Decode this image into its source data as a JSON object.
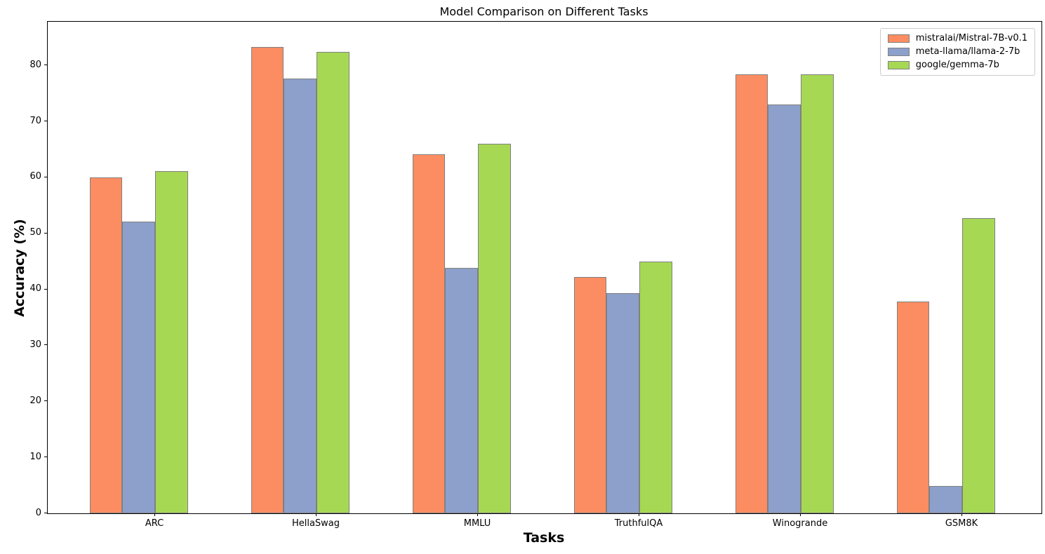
{
  "chart_data": {
    "type": "bar",
    "title": "Model Comparison on Different Tasks",
    "xlabel": "Tasks",
    "ylabel": "Accuracy (%)",
    "categories": [
      "ARC",
      "HellaSwag",
      "MMLU",
      "TruthfulQA",
      "Winogrande",
      "GSM8K"
    ],
    "series": [
      {
        "name": "mistralai/Mistral-7B-v0.1",
        "color": "#FC8D62",
        "values": [
          59.98,
          83.31,
          64.16,
          42.15,
          78.37,
          37.83
        ]
      },
      {
        "name": "meta-llama/llama-2-7b",
        "color": "#8DA0CB",
        "values": [
          52.1,
          77.7,
          43.9,
          39.3,
          73.0,
          4.9
        ]
      },
      {
        "name": "google/gemma-7b",
        "color": "#A6D854",
        "values": [
          61.09,
          82.47,
          66.03,
          44.91,
          78.45,
          52.77
        ]
      }
    ],
    "yticks": [
      0,
      10,
      20,
      30,
      40,
      50,
      60,
      70,
      80
    ],
    "ylim": [
      0,
      87.8
    ],
    "grid": false,
    "legend_position": "upper right",
    "bar_edge_color": "#808080",
    "axis_color": "#000000",
    "legend_border_color": "#cccccc",
    "background_color": "#ffffff"
  }
}
